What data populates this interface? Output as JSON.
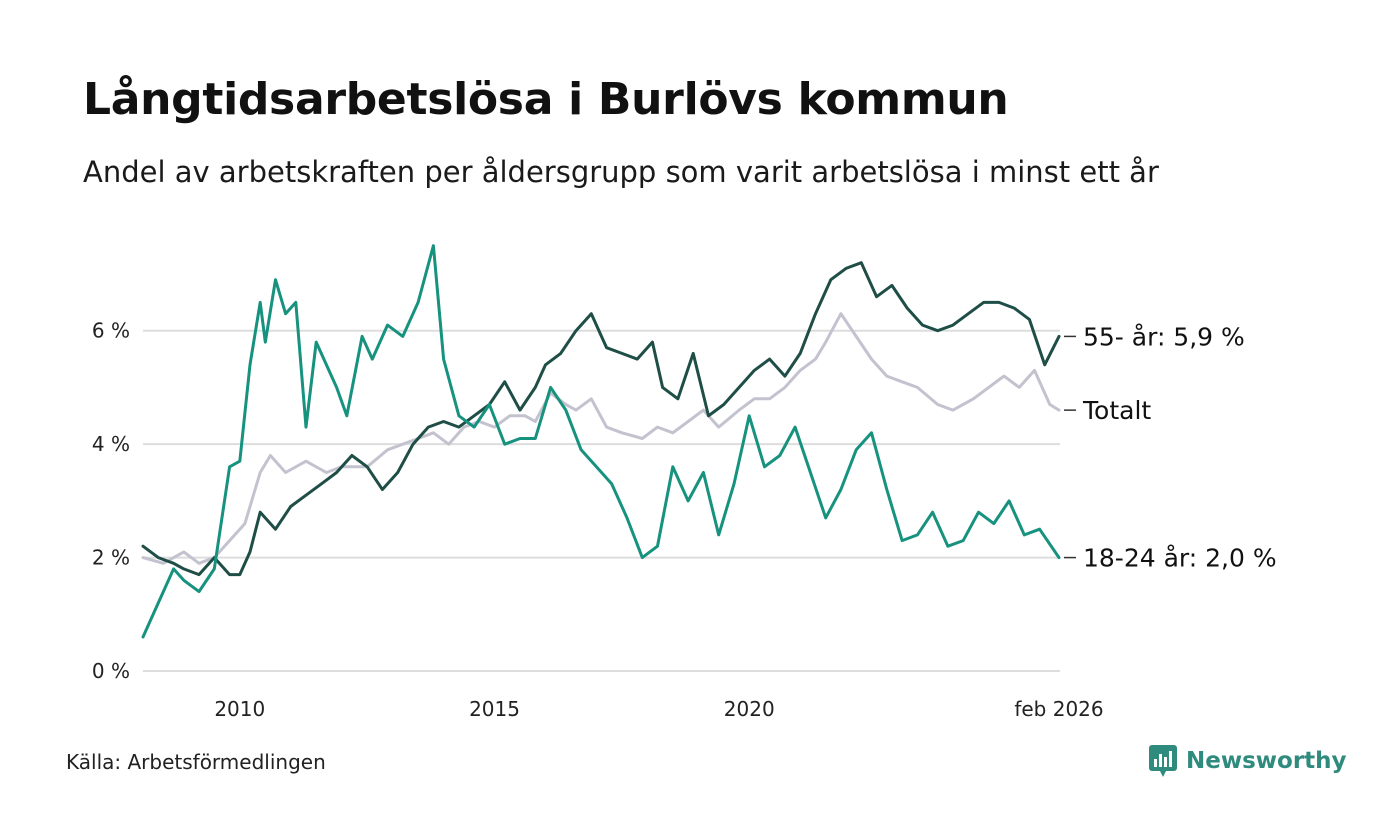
{
  "header": {
    "title": "Långtidsarbetslösa i Burlövs kommun",
    "subtitle": "Andel av arbetskraften per åldersgrupp som varit arbetslösa i minst ett år"
  },
  "footer": {
    "source": "Källa: Arbetsförmedlingen",
    "brand": "Newsworthy"
  },
  "colors": {
    "s55": "#1f4e47",
    "total": "#c3c2cf",
    "s18": "#16927f",
    "grid": "#dddddd",
    "brand": "#2e8b7d"
  },
  "chart_data": {
    "type": "line",
    "title": "Långtidsarbetslösa i Burlövs kommun",
    "subtitle": "Andel av arbetskraften per åldersgrupp som varit arbetslösa i minst ett år",
    "xlabel": "",
    "ylabel": "",
    "xlim": [
      2008.1,
      2026.1
    ],
    "ylim": [
      0,
      7.6
    ],
    "yticks": [
      0,
      2,
      4,
      6
    ],
    "ytick_labels": [
      "0 %",
      "2 %",
      "4 %",
      "6 %"
    ],
    "xticks": [
      2010,
      2015,
      2020,
      2026.08
    ],
    "xtick_labels": [
      "2010",
      "2015",
      "2020",
      "feb 2026"
    ],
    "grid": true,
    "series": [
      {
        "name": "Totalt",
        "end_label": "Totalt",
        "x": [
          2008.1,
          2008.5,
          2008.9,
          2009.2,
          2009.5,
          2009.8,
          2010.1,
          2010.4,
          2010.6,
          2010.9,
          2011.3,
          2011.7,
          2012.0,
          2012.5,
          2012.9,
          2013.2,
          2013.5,
          2013.8,
          2014.1,
          2014.4,
          2014.7,
          2015.0,
          2015.3,
          2015.6,
          2015.8,
          2016.1,
          2016.4,
          2016.6,
          2016.9,
          2017.2,
          2017.5,
          2017.9,
          2018.2,
          2018.5,
          2018.8,
          2019.1,
          2019.4,
          2019.8,
          2020.1,
          2020.4,
          2020.7,
          2021.0,
          2021.3,
          2021.5,
          2021.8,
          2022.1,
          2022.4,
          2022.7,
          2023.0,
          2023.3,
          2023.7,
          2024.0,
          2024.4,
          2024.7,
          2025.0,
          2025.3,
          2025.6,
          2025.9,
          2026.08
        ],
        "values": [
          2.0,
          1.9,
          2.1,
          1.9,
          2.0,
          2.3,
          2.6,
          3.5,
          3.8,
          3.5,
          3.7,
          3.5,
          3.6,
          3.6,
          3.9,
          4.0,
          4.1,
          4.2,
          4.0,
          4.3,
          4.4,
          4.3,
          4.5,
          4.5,
          4.4,
          4.9,
          4.7,
          4.6,
          4.8,
          4.3,
          4.2,
          4.1,
          4.3,
          4.2,
          4.4,
          4.6,
          4.3,
          4.6,
          4.8,
          4.8,
          5.0,
          5.3,
          5.5,
          5.8,
          6.3,
          5.9,
          5.5,
          5.2,
          5.1,
          5.0,
          4.7,
          4.6,
          4.8,
          5.0,
          5.2,
          5.0,
          5.3,
          4.7,
          4.6
        ]
      },
      {
        "name": "55- år",
        "end_label": "55- år: 5,9 %",
        "x": [
          2008.1,
          2008.4,
          2008.7,
          2008.9,
          2009.2,
          2009.5,
          2009.8,
          2010.0,
          2010.2,
          2010.4,
          2010.7,
          2011.0,
          2011.3,
          2011.6,
          2011.9,
          2012.2,
          2012.5,
          2012.8,
          2013.1,
          2013.4,
          2013.7,
          2014.0,
          2014.3,
          2014.6,
          2014.9,
          2015.2,
          2015.5,
          2015.8,
          2016.0,
          2016.3,
          2016.6,
          2016.9,
          2017.2,
          2017.5,
          2017.8,
          2018.1,
          2018.3,
          2018.6,
          2018.9,
          2019.2,
          2019.5,
          2019.8,
          2020.1,
          2020.4,
          2020.7,
          2021.0,
          2021.3,
          2021.6,
          2021.9,
          2022.2,
          2022.5,
          2022.8,
          2023.1,
          2023.4,
          2023.7,
          2024.0,
          2024.3,
          2024.6,
          2024.9,
          2025.2,
          2025.5,
          2025.8,
          2026.08
        ],
        "values": [
          2.2,
          2.0,
          1.9,
          1.8,
          1.7,
          2.0,
          1.7,
          1.7,
          2.1,
          2.8,
          2.5,
          2.9,
          3.1,
          3.3,
          3.5,
          3.8,
          3.6,
          3.2,
          3.5,
          4.0,
          4.3,
          4.4,
          4.3,
          4.5,
          4.7,
          5.1,
          4.6,
          5.0,
          5.4,
          5.6,
          6.0,
          6.3,
          5.7,
          5.6,
          5.5,
          5.8,
          5.0,
          4.8,
          5.6,
          4.5,
          4.7,
          5.0,
          5.3,
          5.5,
          5.2,
          5.6,
          6.3,
          6.9,
          7.1,
          7.2,
          6.6,
          6.8,
          6.4,
          6.1,
          6.0,
          6.1,
          6.3,
          6.5,
          6.5,
          6.4,
          6.2,
          5.4,
          5.9
        ]
      },
      {
        "name": "18-24 år",
        "end_label": "18-24 år: 2,0 %",
        "x": [
          2008.1,
          2008.4,
          2008.7,
          2008.9,
          2009.2,
          2009.5,
          2009.8,
          2010.0,
          2010.2,
          2010.4,
          2010.5,
          2010.7,
          2010.9,
          2011.1,
          2011.3,
          2011.5,
          2011.7,
          2011.9,
          2012.1,
          2012.4,
          2012.6,
          2012.9,
          2013.2,
          2013.5,
          2013.8,
          2014.0,
          2014.3,
          2014.6,
          2014.9,
          2015.2,
          2015.5,
          2015.8,
          2016.1,
          2016.4,
          2016.7,
          2017.0,
          2017.3,
          2017.6,
          2017.9,
          2018.2,
          2018.5,
          2018.8,
          2019.1,
          2019.4,
          2019.7,
          2020.0,
          2020.3,
          2020.6,
          2020.9,
          2021.2,
          2021.5,
          2021.8,
          2022.1,
          2022.4,
          2022.7,
          2023.0,
          2023.3,
          2023.6,
          2023.9,
          2024.2,
          2024.5,
          2024.8,
          2025.1,
          2025.4,
          2025.7,
          2026.08
        ],
        "values": [
          0.6,
          1.2,
          1.8,
          1.6,
          1.4,
          1.8,
          3.6,
          3.7,
          5.4,
          6.5,
          5.8,
          6.9,
          6.3,
          6.5,
          4.3,
          5.8,
          5.4,
          5.0,
          4.5,
          5.9,
          5.5,
          6.1,
          5.9,
          6.5,
          7.5,
          5.5,
          4.5,
          4.3,
          4.7,
          4.0,
          4.1,
          4.1,
          5.0,
          4.6,
          3.9,
          3.6,
          3.3,
          2.7,
          2.0,
          2.2,
          3.6,
          3.0,
          3.5,
          2.4,
          3.3,
          4.5,
          3.6,
          3.8,
          4.3,
          3.5,
          2.7,
          3.2,
          3.9,
          4.2,
          3.2,
          2.3,
          2.4,
          2.8,
          2.2,
          2.3,
          2.8,
          2.6,
          3.0,
          2.4,
          2.5,
          2.0
        ]
      }
    ]
  }
}
